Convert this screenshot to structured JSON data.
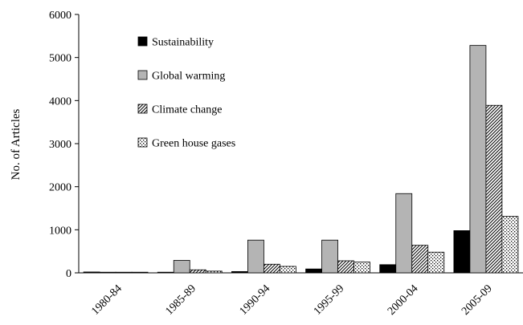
{
  "chart_data": {
    "type": "bar",
    "title": "",
    "xlabel": "",
    "ylabel": "No. of Articles",
    "ylim": [
      0,
      6000
    ],
    "yticks": [
      0,
      1000,
      2000,
      3000,
      4000,
      5000,
      6000
    ],
    "grid": false,
    "legend_position": "top-left",
    "categories": [
      "1980-84",
      "1985-89",
      "1990-94",
      "1995-99",
      "2000-04",
      "2005-09"
    ],
    "series": [
      {
        "name": "Sustainability",
        "pattern": "solid-black",
        "values": [
          20,
          15,
          30,
          90,
          190,
          980
        ]
      },
      {
        "name": "Global warming",
        "pattern": "solid-gray",
        "values": [
          10,
          290,
          760,
          760,
          1840,
          5280
        ]
      },
      {
        "name": "Climate change",
        "pattern": "diagonal-hatch",
        "values": [
          5,
          70,
          200,
          280,
          640,
          3890
        ]
      },
      {
        "name": "Green house gases",
        "pattern": "dots",
        "values": [
          5,
          40,
          150,
          250,
          480,
          1310
        ]
      }
    ],
    "colors": {
      "sustainability": "#000000",
      "global_warming": "#b4b4b4",
      "hatch": "#000000",
      "dots": "#000000"
    }
  }
}
